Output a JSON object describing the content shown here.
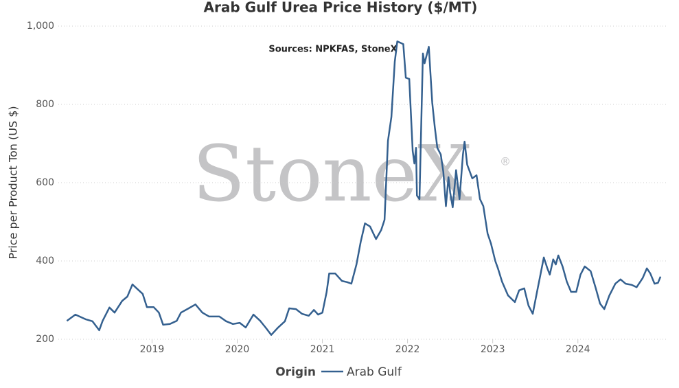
{
  "chart_data": {
    "type": "line",
    "title": "Arab Gulf Urea Price History ($/MT)",
    "subtitle": "Sources: NPKFAS, StoneX",
    "watermark": "StoneX",
    "watermark_mark": "®",
    "y_label": "Price per Product Ton (US $)",
    "legend_title": "Origin",
    "legend_position": "bottom",
    "grid": true,
    "xlim": [
      2017.9,
      2025.05
    ],
    "xticks": [
      2019,
      2020,
      2021,
      2022,
      2023,
      2024
    ],
    "ylim": [
      200,
      1000
    ],
    "yticks": [
      200,
      400,
      600,
      800,
      {
        "value": 1000,
        "label": "1,000"
      }
    ],
    "x": [
      2018.0,
      2018.1,
      2018.22,
      2018.3,
      2018.38,
      2018.42,
      2018.5,
      2018.56,
      2018.65,
      2018.71,
      2018.77,
      2018.82,
      2018.89,
      2018.94,
      2019.02,
      2019.08,
      2019.13,
      2019.21,
      2019.29,
      2019.34,
      2019.43,
      2019.51,
      2019.59,
      2019.67,
      2019.79,
      2019.87,
      2019.95,
      2020.03,
      2020.1,
      2020.19,
      2020.27,
      2020.34,
      2020.4,
      2020.48,
      2020.56,
      2020.61,
      2020.69,
      2020.76,
      2020.84,
      2020.9,
      2020.95,
      2021.0,
      2021.05,
      2021.08,
      2021.15,
      2021.23,
      2021.29,
      2021.34,
      2021.4,
      2021.45,
      2021.5,
      2021.56,
      2021.63,
      2021.69,
      2021.73,
      2021.77,
      2021.81,
      2021.85,
      2021.88,
      2021.95,
      2021.98,
      2022.02,
      2022.06,
      2022.08,
      2022.1,
      2022.11,
      2022.14,
      2022.18,
      2022.2,
      2022.25,
      2022.29,
      2022.32,
      2022.35,
      2022.39,
      2022.42,
      2022.45,
      2022.48,
      2022.5,
      2022.53,
      2022.57,
      2022.61,
      2022.65,
      2022.67,
      2022.7,
      2022.76,
      2022.81,
      2022.85,
      2022.89,
      2022.94,
      2022.98,
      2023.03,
      2023.06,
      2023.11,
      2023.18,
      2023.26,
      2023.31,
      2023.37,
      2023.42,
      2023.47,
      2023.52,
      2023.56,
      2023.6,
      2023.64,
      2023.67,
      2023.71,
      2023.74,
      2023.77,
      2023.82,
      2023.87,
      2023.92,
      2023.98,
      2024.03,
      2024.08,
      2024.15,
      2024.21,
      2024.26,
      2024.31,
      2024.37,
      2024.44,
      2024.5,
      2024.56,
      2024.63,
      2024.69,
      2024.76,
      2024.81,
      2024.85,
      2024.9,
      2024.94,
      2024.97
    ],
    "series": [
      {
        "name": "Arab Gulf",
        "color": "#34608f",
        "values": [
          247,
          263,
          251,
          246,
          223,
          247,
          281,
          268,
          298,
          309,
          340,
          330,
          316,
          282,
          282,
          268,
          237,
          239,
          247,
          268,
          279,
          289,
          268,
          258,
          258,
          246,
          239,
          242,
          230,
          263,
          247,
          228,
          211,
          230,
          246,
          279,
          277,
          265,
          260,
          275,
          263,
          268,
          321,
          368,
          368,
          349,
          346,
          342,
          391,
          449,
          496,
          488,
          456,
          479,
          505,
          707,
          768,
          909,
          961,
          954,
          868,
          865,
          681,
          649,
          689,
          567,
          558,
          930,
          905,
          947,
          804,
          742,
          689,
          672,
          628,
          540,
          614,
          575,
          537,
          632,
          558,
          672,
          705,
          646,
          611,
          619,
          558,
          540,
          470,
          444,
          400,
          382,
          347,
          312,
          295,
          325,
          330,
          286,
          265,
          321,
          365,
          409,
          382,
          365,
          404,
          391,
          414,
          386,
          347,
          321,
          321,
          365,
          386,
          374,
          330,
          291,
          277,
          312,
          342,
          353,
          342,
          339,
          333,
          356,
          381,
          368,
          342,
          344,
          360
        ]
      }
    ]
  }
}
